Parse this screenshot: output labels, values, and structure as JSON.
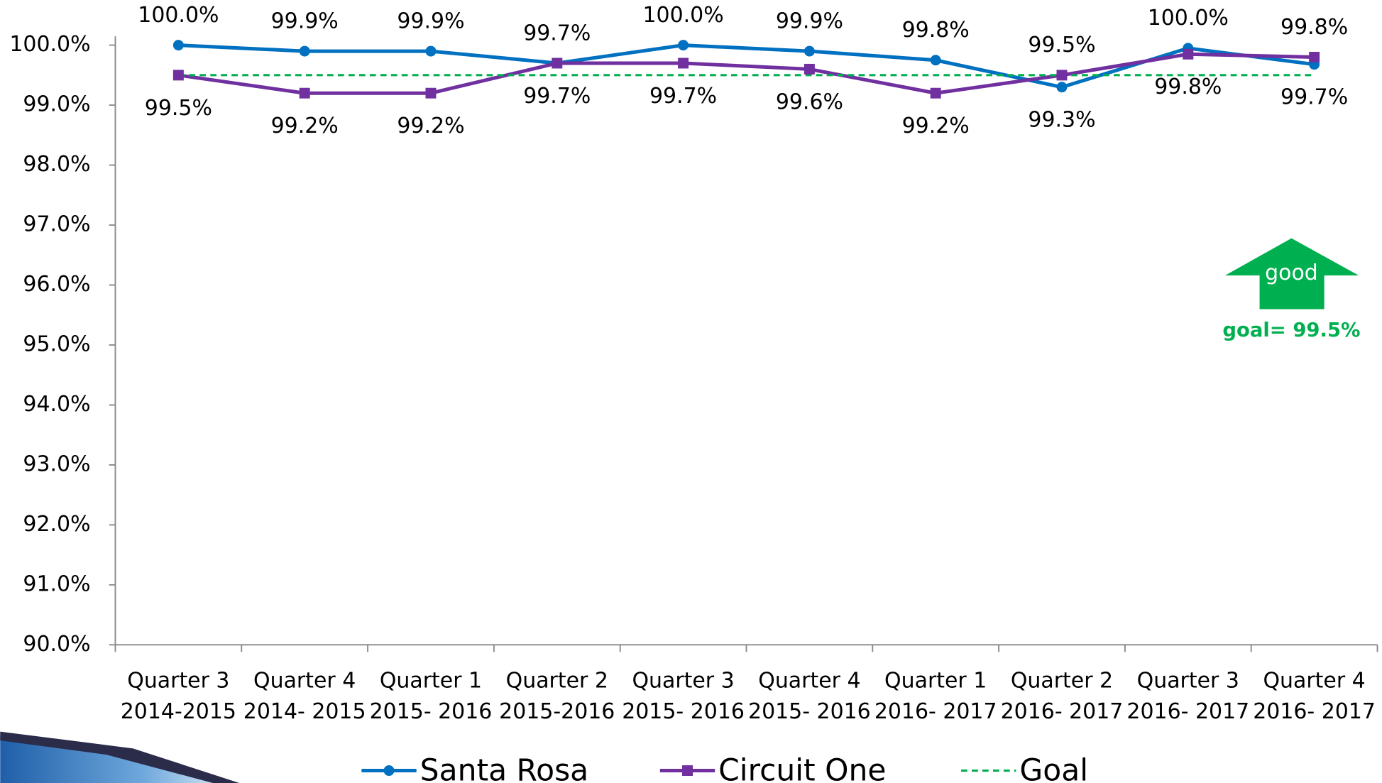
{
  "chart_data": {
    "type": "line",
    "categories": [
      [
        "Quarter 3",
        "2014-2015"
      ],
      [
        "Quarter 4",
        "2014- 2015"
      ],
      [
        "Quarter 1",
        "2015- 2016"
      ],
      [
        "Quarter 2",
        "2015-2016"
      ],
      [
        "Quarter 3",
        "2015- 2016"
      ],
      [
        "Quarter 4",
        "2015- 2016"
      ],
      [
        "Quarter 1",
        "2016- 2017"
      ],
      [
        "Quarter 2",
        "2016- 2017"
      ],
      [
        "Quarter 3",
        "2016- 2017"
      ],
      [
        "Quarter 4",
        "2016- 2017"
      ]
    ],
    "series": [
      {
        "name": "Santa Rosa",
        "color": "#0070c0",
        "marker": "circle",
        "values": [
          100.0,
          99.9,
          99.9,
          99.7,
          100.0,
          99.9,
          99.75,
          99.3,
          99.95,
          99.68
        ],
        "value_labels": [
          "100.0%",
          "99.9%",
          "99.9%",
          "99.7%",
          "100.0%",
          "99.9%",
          "99.8%",
          "99.3%",
          "100.0%",
          "99.7%"
        ]
      },
      {
        "name": "Circuit One",
        "color": "#7030a0",
        "marker": "square",
        "values": [
          99.5,
          99.2,
          99.2,
          99.7,
          99.7,
          99.6,
          99.2,
          99.5,
          99.85,
          99.8
        ],
        "value_labels": [
          "99.5%",
          "99.2%",
          "99.2%",
          "99.7%",
          "99.7%",
          "99.6%",
          "99.2%",
          "99.5%",
          "99.8%",
          "99.8%"
        ]
      },
      {
        "name": "Goal",
        "color": "#00b050",
        "dashed": true,
        "values": [
          99.5,
          99.5,
          99.5,
          99.5,
          99.5,
          99.5,
          99.5,
          99.5,
          99.5,
          99.5
        ]
      }
    ],
    "ylim": [
      90,
      100
    ],
    "yticks": [
      {
        "value": 90,
        "label": "90.0%"
      },
      {
        "value": 91,
        "label": "91.0%"
      },
      {
        "value": 92,
        "label": "92.0%"
      },
      {
        "value": 93,
        "label": "93.0%"
      },
      {
        "value": 94,
        "label": "94.0%"
      },
      {
        "value": 95,
        "label": "95.0%"
      },
      {
        "value": 96,
        "label": "96.0%"
      },
      {
        "value": 97,
        "label": "97.0%"
      },
      {
        "value": 98,
        "label": "98.0%"
      },
      {
        "value": 99,
        "label": "99.0%"
      },
      {
        "value": 100,
        "label": "100.0%"
      }
    ],
    "annotations": [
      "good",
      "goal= 99.5%"
    ],
    "legend": "bottom"
  }
}
